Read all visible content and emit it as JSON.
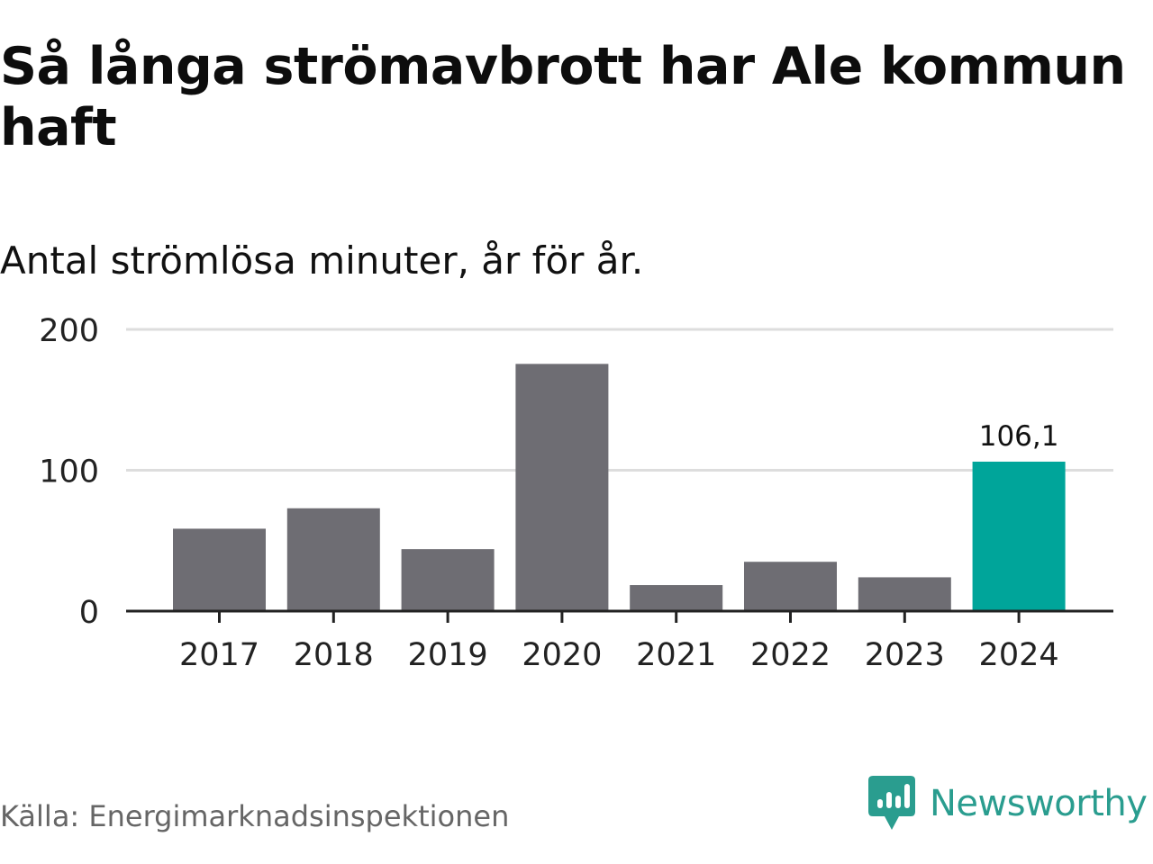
{
  "header": {
    "title": "Så långa strömavbrott har Ale kommun haft",
    "subtitle": "Antal strömlösa minuter, år för år."
  },
  "footer": {
    "source": "Källa: Energimarknadsinspektionen",
    "brand": "Newsworthy"
  },
  "icons": {
    "brand_logo": "newsworthy-logo-icon"
  },
  "colors": {
    "bar": "#6e6d73",
    "highlight": "#00a59a",
    "grid": "#dddddd",
    "axis": "#222222",
    "brand": "#2a9d8f"
  },
  "chart_data": {
    "type": "bar",
    "title": "Så långa strömavbrott har Ale kommun haft",
    "subtitle": "Antal strömlösa minuter, år för år.",
    "categories": [
      "2017",
      "2018",
      "2019",
      "2020",
      "2021",
      "2022",
      "2023",
      "2024"
    ],
    "values": [
      58.5,
      73,
      44,
      175.5,
      18.5,
      35,
      24,
      106.1
    ],
    "highlight_index": 7,
    "data_labels": [
      {
        "index": 7,
        "text": "106,1"
      }
    ],
    "yticks": [
      0,
      100,
      200
    ],
    "ylim": [
      0,
      200
    ],
    "grid": true,
    "legend": false
  }
}
